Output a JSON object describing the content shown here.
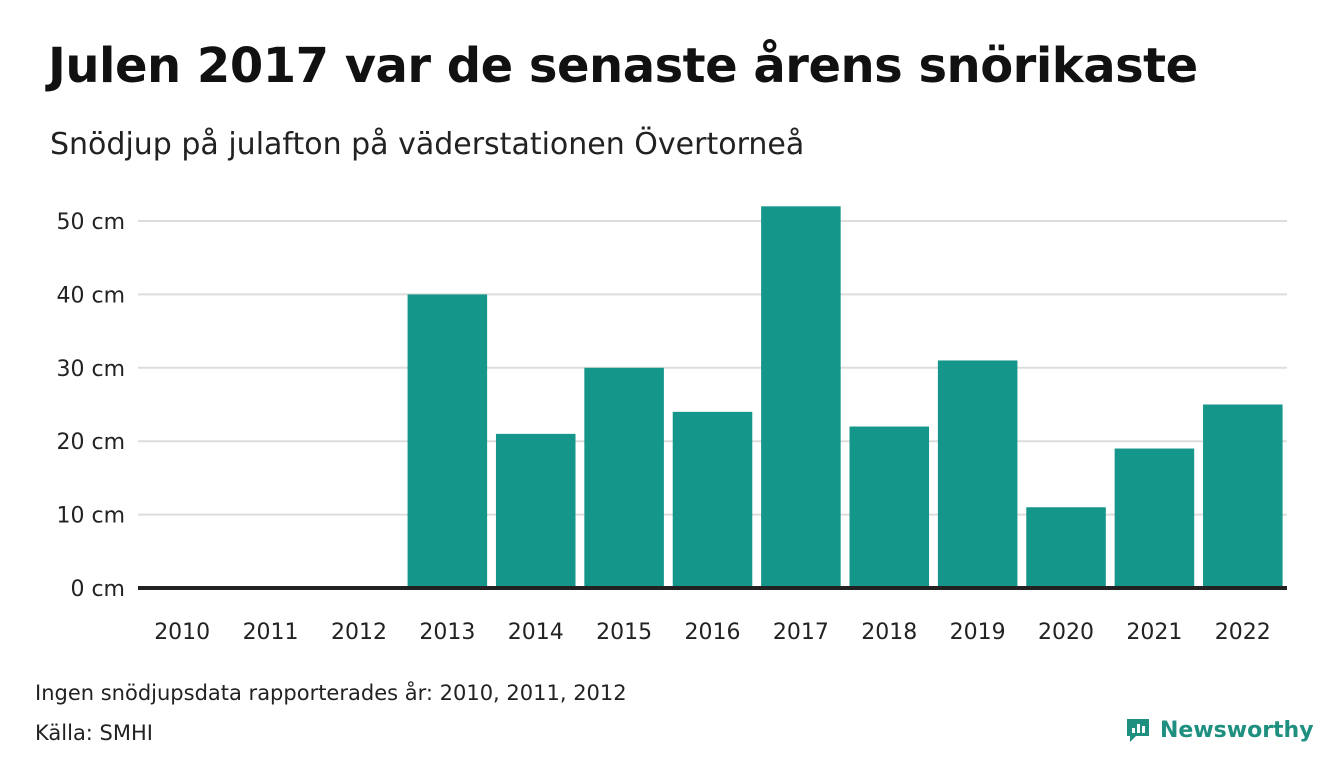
{
  "title": "Julen 2017 var de senaste årens snörikaste",
  "subtitle": "Snödjup på julafton på väderstationen Övertorneå",
  "note": "Ingen snödjupsdata rapporterades år: 2010, 2011, 2012",
  "source": "Källa: SMHI",
  "brand": {
    "name": "Newsworthy",
    "icon": "newsworthy-logo-icon"
  },
  "colors": {
    "bar": "#14968a",
    "grid": "#dddddd",
    "axis": "#222222",
    "text": "#222222",
    "brand": "#1f8f80"
  },
  "chart_data": {
    "type": "bar",
    "categories": [
      "2010",
      "2011",
      "2012",
      "2013",
      "2014",
      "2015",
      "2016",
      "2017",
      "2018",
      "2019",
      "2020",
      "2021",
      "2022"
    ],
    "values": [
      null,
      null,
      null,
      40,
      21,
      30,
      24,
      52,
      22,
      31,
      11,
      19,
      25
    ],
    "ylim": [
      0,
      50
    ],
    "yticks": [
      0,
      10,
      20,
      30,
      40,
      50
    ],
    "ytick_labels": [
      "0 cm",
      "10 cm",
      "20 cm",
      "30 cm",
      "40 cm",
      "50 cm"
    ],
    "grid": true,
    "legend": "none"
  }
}
